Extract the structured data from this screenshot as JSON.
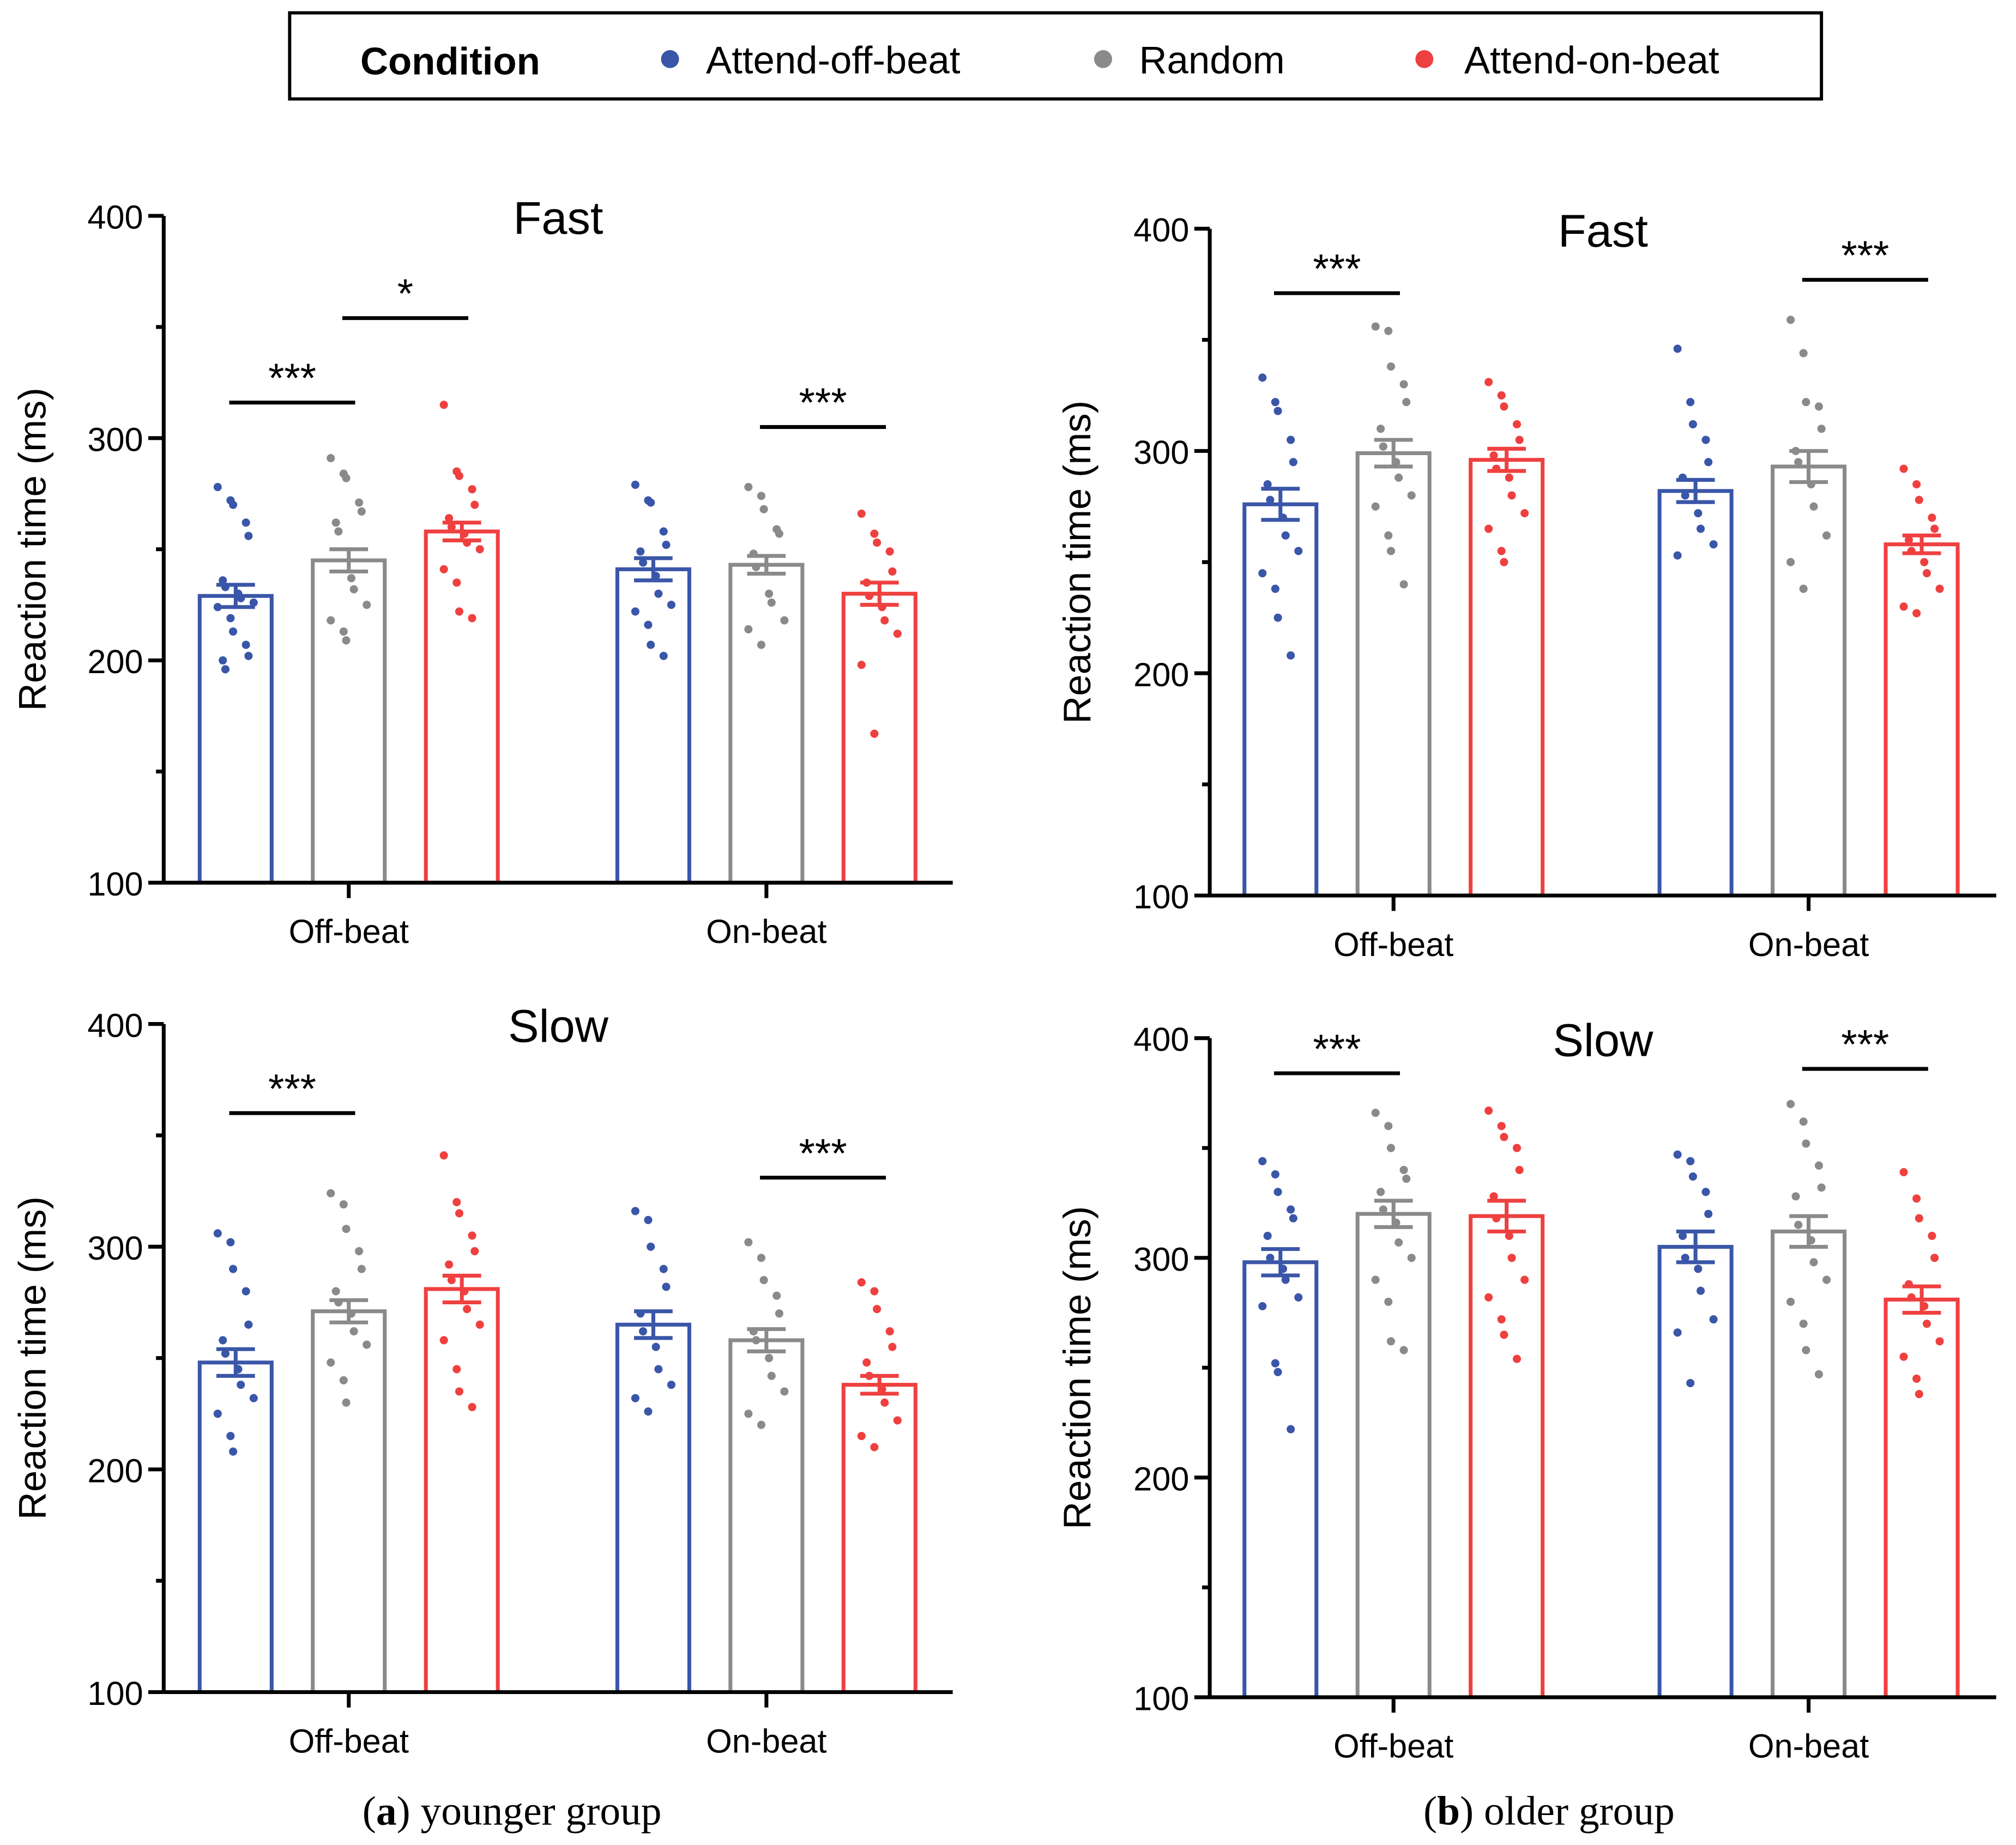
{
  "legend": {
    "title": "Condition",
    "entries": [
      {
        "label": "Attend-off-beat",
        "color": "#3a56a8"
      },
      {
        "label": "Random",
        "color": "#8a8a8a"
      },
      {
        "label": "Attend-on-beat",
        "color": "#ef4040"
      }
    ]
  },
  "captions": [
    {
      "label": "a",
      "text": " younger group"
    },
    {
      "label": "b",
      "text": " older group"
    }
  ],
  "chart_data": [
    {
      "type": "bar",
      "group": "younger",
      "title": "Fast",
      "ylabel": "Reaction time (ms)",
      "xlabel": "",
      "ylim": [
        100,
        400
      ],
      "yticks": [
        "100",
        "200",
        "300",
        "400"
      ],
      "categories": [
        "Off-beat",
        "On-beat"
      ],
      "series": [
        {
          "name": "Attend-off-beat",
          "values": [
            229,
            241
          ],
          "sem": [
            5,
            5
          ],
          "points": [
            [
              278,
              272,
              270,
              262,
              256,
              236,
              233,
              230,
              228,
              226,
              224,
              219,
              213,
              207,
              202,
              200,
              196
            ],
            [
              279,
              272,
              271,
              258,
              252,
              249,
              244,
              238,
              230,
              225,
              222,
              216,
              207,
              202
            ]
          ]
        },
        {
          "name": "Random",
          "values": [
            245,
            243
          ],
          "sem": [
            5,
            4
          ],
          "points": [
            [
              291,
              284,
              282,
              271,
              267,
              262,
              258,
              237,
              232,
              225,
              218,
              213,
              209
            ],
            [
              278,
              274,
              268,
              259,
              257,
              248,
              242,
              230,
              226,
              218,
              214,
              207
            ]
          ]
        },
        {
          "name": "Attend-on-beat",
          "values": [
            258,
            230
          ],
          "sem": [
            4,
            5
          ],
          "points": [
            [
              315,
              285,
              283,
              277,
              270,
              264,
              260,
              257,
              253,
              250,
              241,
              235,
              222,
              219
            ],
            [
              266,
              257,
              253,
              249,
              240,
              235,
              229,
              224,
              218,
              212,
              198,
              167
            ]
          ]
        }
      ],
      "significance": [
        {
          "category": 0,
          "from": 0,
          "to": 1,
          "level": 316,
          "label": "***"
        },
        {
          "category": 0,
          "from": 1,
          "to": 2,
          "level": 354,
          "label": "*"
        },
        {
          "category": 1,
          "from": 1,
          "to": 2,
          "level": 305,
          "label": "***"
        }
      ]
    },
    {
      "type": "bar",
      "group": "younger",
      "title": "Slow",
      "ylabel": "Reaction time (ms)",
      "xlabel": "",
      "ylim": [
        100,
        400
      ],
      "yticks": [
        "100",
        "200",
        "300",
        "400"
      ],
      "categories": [
        "Off-beat",
        "On-beat"
      ],
      "series": [
        {
          "name": "Attend-off-beat",
          "values": [
            248,
            265
          ],
          "sem": [
            6,
            6
          ],
          "points": [
            [
              306,
              302,
              290,
              280,
              265,
              258,
              252,
              245,
              238,
              232,
              225,
              215,
              208
            ],
            [
              316,
              312,
              300,
              290,
              282,
              270,
              262,
              255,
              245,
              238,
              232,
              226
            ]
          ]
        },
        {
          "name": "Random",
          "values": [
            271,
            258
          ],
          "sem": [
            5,
            5
          ],
          "points": [
            [
              324,
              319,
              308,
              298,
              290,
              280,
              275,
              270,
              262,
              256,
              248,
              240,
              230
            ],
            [
              302,
              295,
              285,
              278,
              270,
              262,
              258,
              250,
              242,
              235,
              225,
              220
            ]
          ]
        },
        {
          "name": "Attend-on-beat",
          "values": [
            281,
            238
          ],
          "sem": [
            6,
            4
          ],
          "points": [
            [
              341,
              320,
              315,
              305,
              298,
              292,
              285,
              280,
              272,
              265,
              258,
              245,
              235,
              228
            ],
            [
              284,
              280,
              272,
              262,
              255,
              248,
              242,
              236,
              230,
              222,
              215,
              210
            ]
          ]
        }
      ],
      "significance": [
        {
          "category": 0,
          "from": 0,
          "to": 1,
          "level": 360,
          "label": "***"
        },
        {
          "category": 1,
          "from": 1,
          "to": 2,
          "level": 331,
          "label": "***"
        }
      ]
    },
    {
      "type": "bar",
      "group": "older",
      "title": "Fast",
      "ylabel": "Reaction time (ms)",
      "xlabel": "",
      "ylim": [
        100,
        400
      ],
      "yticks": [
        "100",
        "200",
        "300",
        "400"
      ],
      "categories": [
        "Off-beat",
        "On-beat"
      ],
      "series": [
        {
          "name": "Attend-off-beat",
          "values": [
            276,
            282
          ],
          "sem": [
            7,
            5
          ],
          "points": [
            [
              333,
              322,
              318,
              305,
              295,
              285,
              278,
              270,
              262,
              255,
              245,
              238,
              225,
              208
            ],
            [
              346,
              322,
              312,
              305,
              295,
              288,
              280,
              272,
              265,
              258,
              253
            ]
          ]
        },
        {
          "name": "Random",
          "values": [
            299,
            293
          ],
          "sem": [
            6,
            7
          ],
          "points": [
            [
              356,
              354,
              338,
              330,
              322,
              310,
              302,
              295,
              288,
              280,
              275,
              262,
              255,
              240
            ],
            [
              359,
              344,
              322,
              320,
              310,
              300,
              295,
              285,
              275,
              262,
              250,
              238
            ]
          ]
        },
        {
          "name": "Attend-on-beat",
          "values": [
            296,
            258
          ],
          "sem": [
            5,
            4
          ],
          "points": [
            [
              331,
              325,
              320,
              312,
              305,
              298,
              292,
              288,
              280,
              272,
              265,
              255,
              250
            ],
            [
              292,
              285,
              278,
              270,
              265,
              260,
              255,
              250,
              245,
              238,
              230,
              227
            ]
          ]
        }
      ],
      "significance": [
        {
          "category": 0,
          "from": 0,
          "to": 1,
          "level": 371,
          "label": "***"
        },
        {
          "category": 1,
          "from": 1,
          "to": 2,
          "level": 377,
          "label": "***"
        }
      ]
    },
    {
      "type": "bar",
      "group": "older",
      "title": "Slow",
      "ylabel": "Reaction time (ms)",
      "xlabel": "",
      "ylim": [
        100,
        400
      ],
      "yticks": [
        "100",
        "200",
        "300",
        "400"
      ],
      "categories": [
        "Off-beat",
        "On-beat"
      ],
      "series": [
        {
          "name": "Attend-off-beat",
          "values": [
            298,
            305
          ],
          "sem": [
            6,
            7
          ],
          "points": [
            [
              344,
              338,
              330,
              322,
              318,
              310,
              300,
              295,
              290,
              282,
              278,
              252,
              248,
              222
            ],
            [
              347,
              344,
              337,
              330,
              320,
              310,
              300,
              295,
              285,
              272,
              266,
              243
            ]
          ]
        },
        {
          "name": "Random",
          "values": [
            320,
            312
          ],
          "sem": [
            6,
            7
          ],
          "points": [
            [
              366,
              360,
              350,
              340,
              336,
              330,
              322,
              316,
              307,
              300,
              290,
              280,
              262,
              258
            ],
            [
              370,
              362,
              352,
              342,
              332,
              328,
              315,
              308,
              298,
              290,
              280,
              270,
              258,
              247
            ]
          ]
        },
        {
          "name": "Attend-on-beat",
          "values": [
            319,
            281
          ],
          "sem": [
            7,
            6
          ],
          "points": [
            [
              367,
              360,
              355,
              350,
              340,
              328,
              318,
              310,
              300,
              290,
              282,
              272,
              265,
              254
            ],
            [
              339,
              327,
              318,
              310,
              300,
              288,
              282,
              278,
              270,
              262,
              255,
              245,
              238
            ]
          ]
        }
      ],
      "significance": [
        {
          "category": 0,
          "from": 0,
          "to": 1,
          "level": 384,
          "label": "***"
        },
        {
          "category": 1,
          "from": 1,
          "to": 2,
          "level": 386,
          "label": "***"
        }
      ]
    }
  ]
}
